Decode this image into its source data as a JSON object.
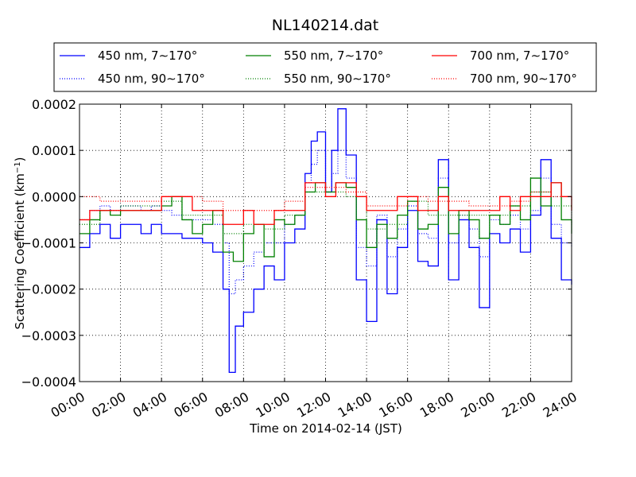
{
  "chart_data": {
    "type": "line",
    "title": "NL140214.dat",
    "xlabel": "Time on 2014-02-14 (JST)",
    "ylabel": "Scattering Coefficient (km",
    "ylabel_sup": "−1",
    "ylabel_close": ")",
    "xlim": [
      0,
      24
    ],
    "ylim": [
      -0.0004,
      0.0002
    ],
    "x_unit": "hours",
    "x_ticks": [
      0,
      2,
      4,
      6,
      8,
      10,
      12,
      14,
      16,
      18,
      20,
      22,
      24
    ],
    "x_tick_labels": [
      "00:00",
      "02:00",
      "04:00",
      "06:00",
      "08:00",
      "10:00",
      "12:00",
      "14:00",
      "16:00",
      "18:00",
      "20:00",
      "22:00",
      "24:00"
    ],
    "y_ticks": [
      0.0002,
      0.0001,
      0.0,
      -0.0001,
      -0.0002,
      -0.0003,
      -0.0004
    ],
    "y_tick_labels": [
      "0.0002",
      "0.0001",
      "0.0000",
      "−0.0001",
      "−0.0002",
      "−0.0003",
      "−0.0004"
    ],
    "grid": true,
    "legend_position": "above-plot",
    "series": [
      {
        "name": "450 nm, 7∼170°",
        "color": "#0000ff",
        "style": "solid",
        "x": [
          0,
          0.5,
          1,
          1.5,
          2,
          2.5,
          3,
          3.5,
          4,
          4.5,
          5,
          5.5,
          6,
          6.5,
          7,
          7.3,
          7.6,
          8,
          8.5,
          9,
          9.5,
          10,
          10.5,
          11,
          11.3,
          11.6,
          12,
          12.3,
          12.6,
          13,
          13.5,
          14,
          14.5,
          15,
          15.5,
          16,
          16.5,
          17,
          17.5,
          18,
          18.5,
          19,
          19.5,
          20,
          20.5,
          21,
          21.5,
          22,
          22.5,
          23,
          23.5,
          24
        ],
        "y": [
          -0.00011,
          -8e-05,
          -6e-05,
          -9e-05,
          -6e-05,
          -6e-05,
          -8e-05,
          -6e-05,
          -8e-05,
          -8e-05,
          -9e-05,
          -9e-05,
          -0.0001,
          -0.00012,
          -0.0002,
          -0.00038,
          -0.00028,
          -0.00025,
          -0.0002,
          -0.00015,
          -0.00018,
          -0.0001,
          -7e-05,
          5e-05,
          0.00012,
          0.00014,
          1e-05,
          0.0001,
          0.00019,
          9e-05,
          -0.00018,
          -0.00027,
          -5e-05,
          -0.00021,
          -0.00011,
          -3e-05,
          -0.00014,
          -0.00015,
          8e-05,
          -0.00018,
          -5e-05,
          -0.00011,
          -0.00024,
          -8e-05,
          -0.0001,
          -7e-05,
          -0.00012,
          -4e-05,
          8e-05,
          -9e-05,
          -0.00018,
          -0.00019
        ]
      },
      {
        "name": "450 nm, 90∼170°",
        "color": "#0000ff",
        "style": "dotted",
        "x": [
          0,
          0.5,
          1,
          1.5,
          2,
          2.5,
          3,
          3.5,
          4,
          4.5,
          5,
          5.5,
          6,
          6.5,
          7,
          7.3,
          7.6,
          8,
          8.5,
          9,
          9.5,
          10,
          10.5,
          11,
          11.3,
          11.6,
          12,
          12.3,
          12.6,
          13,
          13.5,
          14,
          14.5,
          15,
          15.5,
          16,
          16.5,
          17,
          17.5,
          18,
          18.5,
          19,
          19.5,
          20,
          20.5,
          21,
          21.5,
          22,
          22.5,
          23,
          23.5,
          24
        ],
        "y": [
          -5e-05,
          -3e-05,
          -2e-05,
          -3e-05,
          -2e-05,
          -2e-05,
          -3e-05,
          -2e-05,
          -3e-05,
          -4e-05,
          -5e-05,
          -5e-05,
          -5e-05,
          -6e-05,
          -0.0001,
          -0.00021,
          -0.00018,
          -0.00015,
          -0.00012,
          -0.0001,
          -0.0001,
          -6e-05,
          -4e-05,
          3e-05,
          7e-05,
          0.0001,
          1e-05,
          5e-05,
          0.0001,
          4e-05,
          -0.00011,
          -0.00015,
          -4e-05,
          -0.00013,
          -7e-05,
          -2e-05,
          -8e-05,
          -9e-05,
          4e-05,
          -0.0001,
          -4e-05,
          -7e-05,
          -0.00013,
          -5e-05,
          -6e-05,
          -4e-05,
          -7e-05,
          -3e-05,
          4e-05,
          -6e-05,
          -0.0001,
          -0.00011
        ]
      },
      {
        "name": "550 nm, 7∼170°",
        "color": "#008000",
        "style": "solid",
        "x": [
          0,
          0.5,
          1,
          1.5,
          2,
          2.5,
          3,
          3.5,
          4,
          4.5,
          5,
          5.5,
          6,
          6.5,
          7,
          7.5,
          8,
          8.5,
          9,
          9.5,
          10,
          10.5,
          11,
          11.5,
          12,
          12.5,
          13,
          13.5,
          14,
          14.5,
          15,
          15.5,
          16,
          16.5,
          17,
          17.5,
          18,
          18.5,
          19,
          19.5,
          20,
          20.5,
          21,
          21.5,
          22,
          22.5,
          23,
          23.5,
          24
        ],
        "y": [
          -8e-05,
          -5e-05,
          -3e-05,
          -4e-05,
          -3e-05,
          -3e-05,
          -3e-05,
          -3e-05,
          -2e-05,
          0.0,
          -5e-05,
          -8e-05,
          -6e-05,
          -3e-05,
          -0.00012,
          -0.00014,
          -8e-05,
          -6e-05,
          -0.00013,
          -5e-05,
          -6e-05,
          -4e-05,
          1e-05,
          3e-05,
          1e-05,
          3e-05,
          2e-05,
          -5e-05,
          -0.00011,
          -6e-05,
          -9e-05,
          -4e-05,
          -1e-05,
          -7e-05,
          -6e-05,
          2e-05,
          -8e-05,
          -3e-05,
          -5e-05,
          -9e-05,
          -4e-05,
          -6e-05,
          -2e-05,
          -5e-05,
          4e-05,
          -2e-05,
          3e-05,
          -5e-05,
          -8e-05
        ]
      },
      {
        "name": "550 nm, 90∼170°",
        "color": "#008000",
        "style": "dotted",
        "x": [
          0,
          1,
          2,
          3,
          4,
          5,
          6,
          7,
          8,
          9,
          10,
          11,
          12,
          13,
          14,
          15,
          16,
          17,
          18,
          19,
          20,
          21,
          22,
          23,
          24
        ],
        "y": [
          -6e-05,
          -3e-05,
          -2e-05,
          -2e-05,
          -1e-05,
          -4e-05,
          -4e-05,
          -8e-05,
          -6e-05,
          -7e-05,
          -4e-05,
          1e-05,
          1e-05,
          0.0,
          -7e-05,
          -6e-05,
          -1e-05,
          -4e-05,
          -4e-05,
          -4e-05,
          -4e-05,
          -2e-05,
          1e-05,
          -2e-05,
          -6e-05
        ]
      },
      {
        "name": "700 nm, 7∼170°",
        "color": "#ff0000",
        "style": "solid",
        "x": [
          0,
          0.5,
          1,
          1.5,
          2,
          2.5,
          3,
          3.5,
          4,
          4.5,
          5,
          5.5,
          6,
          6.5,
          7,
          7.5,
          8,
          8.5,
          9,
          9.5,
          10,
          10.5,
          11,
          11.5,
          12,
          12.5,
          13,
          13.5,
          14,
          14.5,
          15,
          15.5,
          16,
          16.5,
          17,
          17.5,
          18,
          18.5,
          19,
          19.5,
          20,
          20.5,
          21,
          21.5,
          22,
          22.5,
          23,
          23.5,
          24
        ],
        "y": [
          -5e-05,
          -3e-05,
          -3e-05,
          -3e-05,
          -3e-05,
          -3e-05,
          -3e-05,
          -3e-05,
          0.0,
          0.0,
          0.0,
          -3e-05,
          -3e-05,
          -3e-05,
          -6e-05,
          -6e-05,
          -3e-05,
          -6e-05,
          -6e-05,
          -3e-05,
          -3e-05,
          -3e-05,
          3e-05,
          3e-05,
          0.0,
          3e-05,
          3e-05,
          0.0,
          -3e-05,
          -3e-05,
          -3e-05,
          0.0,
          0.0,
          -3e-05,
          -3e-05,
          0.0,
          -3e-05,
          -3e-05,
          -3e-05,
          -3e-05,
          -3e-05,
          0.0,
          -3e-05,
          0.0,
          0.0,
          0.0,
          3e-05,
          0.0,
          -3e-05
        ]
      },
      {
        "name": "700 nm, 90∼170°",
        "color": "#ff0000",
        "style": "dotted",
        "x": [
          0,
          1,
          2,
          3,
          4,
          5,
          6,
          7,
          8,
          9,
          10,
          11,
          12,
          13,
          14,
          15,
          16,
          17,
          18,
          19,
          20,
          21,
          22,
          23,
          24
        ],
        "y": [
          0.0,
          -1e-05,
          -1e-05,
          -1e-05,
          0.0,
          0.0,
          -1e-05,
          -3e-05,
          -3e-05,
          -3e-05,
          -1e-05,
          2e-05,
          2e-05,
          1e-05,
          -2e-05,
          -2e-05,
          0.0,
          -1e-05,
          -1e-05,
          -2e-05,
          -2e-05,
          -1e-05,
          1e-05,
          0.0,
          -1e-05
        ]
      }
    ]
  }
}
